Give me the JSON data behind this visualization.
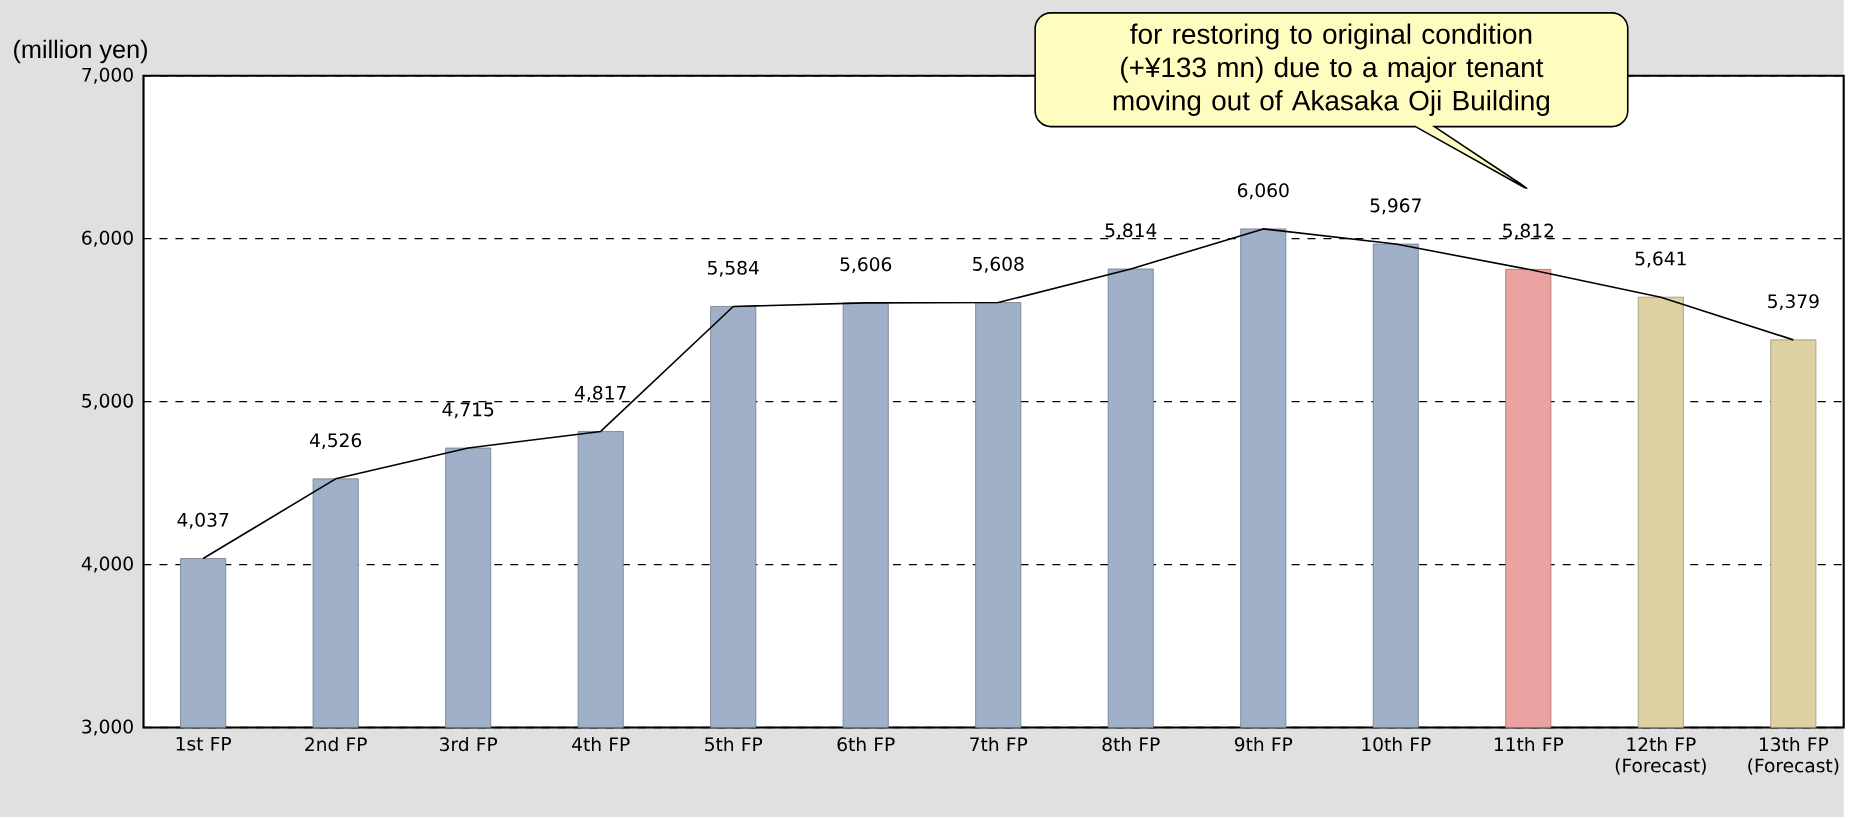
{
  "chart_data": {
    "type": "bar",
    "ylabel": "(million yen)",
    "categories": [
      "1st FP",
      "2nd FP",
      "3rd FP",
      "4th FP",
      "5th FP",
      "6th FP",
      "7th FP",
      "8th FP",
      "9th FP",
      "10th FP",
      "11th FP",
      "12th FP (Forecast)",
      "13th FP (Forecast)"
    ],
    "series": [
      {
        "values": [
          4037,
          4526,
          4715,
          4817,
          5584,
          5606,
          5608,
          5814,
          6060,
          5967,
          5812,
          5641,
          5379
        ],
        "colors": [
          "#9fb0c8",
          "#9fb0c8",
          "#9fb0c8",
          "#9fb0c8",
          "#9fb0c8",
          "#9fb0c8",
          "#9fb0c8",
          "#9fb0c8",
          "#9fb0c8",
          "#9fb0c8",
          "#eaa3a0",
          "#ddd0a2",
          "#ddd0a2"
        ],
        "value_labels": [
          "4,037",
          "4,526",
          "4,715",
          "4,817",
          "5,584",
          "5,606",
          "5,608",
          "5,814",
          "6,060",
          "5,967",
          "5,812",
          "5,641",
          "5,379"
        ]
      },
      {
        "type": "line",
        "color": "#000000",
        "values": [
          4037,
          4526,
          4715,
          4817,
          5584,
          5606,
          5608,
          5814,
          6060,
          5967,
          5812,
          5641,
          5379
        ]
      }
    ],
    "ylim": [
      3000,
      7000
    ],
    "yticks": [
      {
        "value": 3000,
        "label": "3,000"
      },
      {
        "value": 4000,
        "label": "4,000"
      },
      {
        "value": 5000,
        "label": "5,000"
      },
      {
        "value": 6000,
        "label": "6,000"
      },
      {
        "value": 7000,
        "label": "7,000"
      }
    ],
    "grid": "y",
    "annotations": [
      "for restoring to original condition (+¥133 mn) due to a major tenant moving out of Akasaka Oji Building"
    ]
  }
}
